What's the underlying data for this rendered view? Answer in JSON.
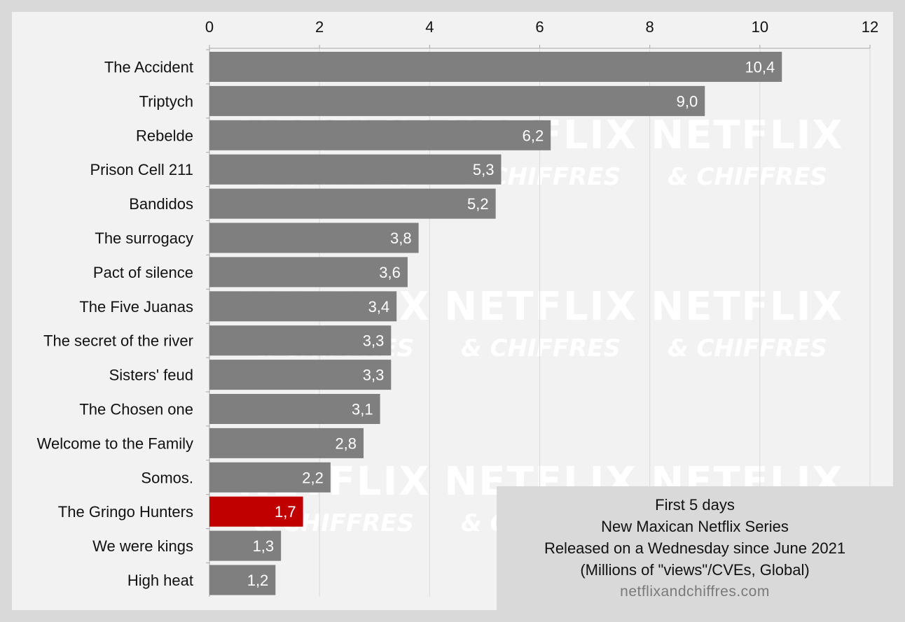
{
  "chart_data": {
    "type": "bar",
    "orientation": "horizontal",
    "categories": [
      "The Accident",
      "Triptych",
      "Rebelde",
      "Prison Cell 211",
      "Bandidos",
      "The surrogacy",
      "Pact of silence",
      "The Five Juanas",
      "The secret of the river",
      "Sisters' feud",
      "The Chosen one",
      "Welcome to the Family",
      "Somos.",
      "The Gringo Hunters",
      "We were kings",
      "High heat"
    ],
    "values": [
      10.4,
      9.0,
      6.2,
      5.3,
      5.2,
      3.8,
      3.6,
      3.4,
      3.3,
      3.3,
      3.1,
      2.8,
      2.2,
      1.7,
      1.3,
      1.2
    ],
    "value_labels": [
      "10,4",
      "9,0",
      "6,2",
      "5,3",
      "5,2",
      "3,8",
      "3,6",
      "3,4",
      "3,3",
      "3,3",
      "3,1",
      "2,8",
      "2,2",
      "1,7",
      "1,3",
      "1,2"
    ],
    "highlight_category": "The Gringo Hunters",
    "xlim": [
      0,
      12
    ],
    "x_ticks": [
      "0",
      "2",
      "4",
      "6",
      "8",
      "10",
      "12"
    ],
    "x_axis_position": "top",
    "grid": true,
    "colors": {
      "bar": "#7f7f7f",
      "highlight": "#c00000",
      "grid": "#d9d9d9",
      "background": "#f2f2f2"
    }
  },
  "legend_box": {
    "lines": [
      "First 5 days",
      "New Maxican Netflix Series",
      "Released on a Wednesday since June 2021",
      "(Millions of \"views\"/CVEs, Global)"
    ],
    "source": "netflixandchiffres.com"
  },
  "watermark": {
    "line1": "NETFLIX",
    "line2": "& CHIFFRES"
  }
}
